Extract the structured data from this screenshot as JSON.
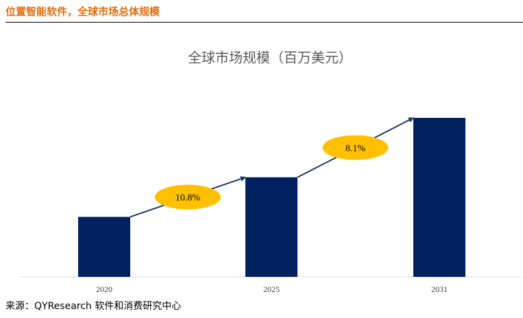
{
  "header": {
    "title": "位置智能软件，全球市场总体规模"
  },
  "colors": {
    "accent": "#e36c09",
    "bar": "#002060",
    "badge": "#ffc000",
    "arrow": "#1f3864"
  },
  "chart_data": {
    "type": "bar",
    "title": "全球市场规模（百万美元）",
    "categories": [
      "2020",
      "2025",
      "2031"
    ],
    "values": [
      1000,
      1660,
      2650
    ],
    "ylim": [
      0,
      2650
    ],
    "grid": false,
    "legend": "none",
    "annotations": [
      {
        "from": "2020",
        "to": "2025",
        "label": "10.8%"
      },
      {
        "from": "2025",
        "to": "2031",
        "label": "8.1%"
      }
    ]
  },
  "footer": {
    "source": "来源：QYResearch 软件和消费研究中心"
  }
}
